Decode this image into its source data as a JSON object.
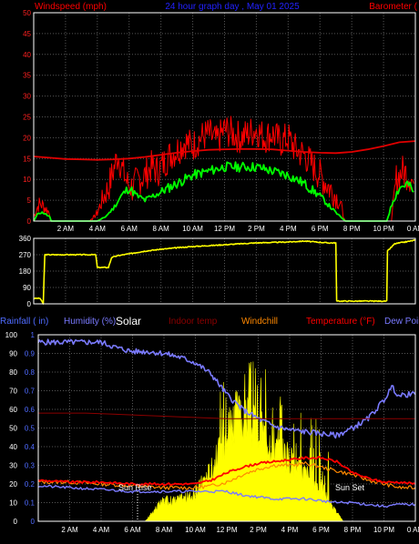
{
  "colors": {
    "background": "#000000",
    "frame": "#ffffff",
    "grid": "#555555",
    "wind_title": "#ff0000",
    "baro_title": "#ff0000",
    "chart_title": "#2222ff",
    "wind_tick": "#ff2020",
    "dir_tick": "#ffffff",
    "time_tick": "#ffffff",
    "rain_tick": "#4f6bff",
    "hum_tick": "#ffffff",
    "speed": "#ff0000",
    "average": "#00ff00",
    "barometer": "#e00000",
    "direction": "#ffff00",
    "solar": "#ffff00",
    "humidity": "#7a7aff",
    "indoor": "#8b0000",
    "temperature": "#ff0000",
    "windchill": "#ff8800",
    "dewpoint": "#7a7aff",
    "sun_text": "#ffffff"
  },
  "chart_data": [
    {
      "type": "line",
      "title": "24 hour graph day , May 01 2025",
      "ylabel": "Windspeed (mph)",
      "y2label": "Barometer (",
      "ylim": [
        0,
        50
      ],
      "yticks": [
        0,
        5,
        10,
        15,
        20,
        25,
        30,
        35,
        40,
        45,
        50
      ],
      "x_ticks": [
        "2 AM",
        "4 AM",
        "6 AM",
        "8 AM",
        "10 AM",
        "12 PM",
        "2 PM",
        "4 PM",
        "6 PM",
        "8 PM",
        "10 PM",
        "0 AM"
      ],
      "grid": true,
      "series": [
        {
          "key": "speed",
          "x": [
            0,
            0.3,
            0.5,
            1.0,
            1.05,
            1.5,
            2.5,
            3.5,
            3.8,
            4.0,
            4.3,
            4.7,
            5.0,
            5.3,
            5.6,
            5.9,
            6.2,
            6.6,
            7.0,
            7.4,
            7.8,
            8.2,
            8.6,
            9.0,
            9.5,
            10.0,
            10.5,
            11.0,
            11.5,
            12.0,
            12.5,
            13.0,
            13.5,
            14.0,
            14.5,
            15.0,
            15.5,
            16.0,
            16.5,
            17.0,
            17.4,
            17.8,
            18.2,
            18.6,
            19.0,
            19.3,
            19.5,
            19.6,
            21.0,
            22.0,
            22.5,
            22.8,
            23.2,
            23.6,
            23.9
          ],
          "y": [
            1,
            4,
            4,
            2,
            0,
            0,
            0,
            0,
            1,
            2,
            5,
            8,
            12,
            16,
            12,
            9,
            8,
            10,
            11,
            13,
            12,
            14,
            16,
            17,
            19,
            18,
            20,
            21,
            19,
            22,
            21,
            20,
            21,
            22,
            20,
            21,
            19,
            20,
            17,
            16,
            14,
            12,
            10,
            8,
            6,
            4,
            1,
            0,
            0,
            0,
            0,
            10,
            12,
            11,
            9
          ]
        },
        {
          "key": "average",
          "x": [
            0,
            0.3,
            0.6,
            1.0,
            1.1,
            2.5,
            3.5,
            4.0,
            4.5,
            5.0,
            5.5,
            6.0,
            6.5,
            7.0,
            7.5,
            8.0,
            9.0,
            10.0,
            11.0,
            12.0,
            13.0,
            14.0,
            15.0,
            16.0,
            17.0,
            18.0,
            18.5,
            19.0,
            19.3,
            19.6,
            21.0,
            22.2,
            22.6,
            23.0,
            23.5,
            23.9
          ],
          "y": [
            0,
            2,
            2,
            1,
            0,
            0,
            0,
            0,
            1,
            3,
            6,
            8,
            6,
            5,
            6,
            7,
            9,
            11,
            12,
            13,
            13,
            13,
            12,
            11,
            9,
            6,
            4,
            2,
            1,
            0,
            0,
            0,
            5,
            8,
            9,
            7
          ]
        },
        {
          "key": "barometer",
          "x": [
            0,
            1,
            2,
            3,
            4,
            5,
            6,
            7,
            8,
            9,
            10,
            11,
            12,
            13,
            14,
            15,
            16,
            17,
            18,
            19,
            20,
            21,
            22,
            23,
            24
          ],
          "y": [
            15.5,
            15.2,
            14.9,
            14.8,
            14.7,
            14.8,
            15.0,
            15.4,
            15.9,
            16.4,
            16.8,
            17.1,
            17.2,
            17.3,
            17.3,
            17.2,
            16.9,
            16.6,
            16.4,
            16.3,
            16.6,
            17.2,
            18.0,
            18.9,
            19.2
          ]
        }
      ]
    },
    {
      "type": "line",
      "title": "",
      "ylim": [
        0,
        360
      ],
      "yticks": [
        0,
        90,
        180,
        270,
        360
      ],
      "grid": true,
      "series": [
        {
          "key": "direction",
          "x": [
            0,
            0.4,
            0.6,
            0.7,
            2.5,
            3.9,
            4.0,
            4.1,
            4.7,
            4.9,
            5.3,
            6.0,
            7.0,
            8.0,
            9.0,
            10.0,
            12.0,
            14.0,
            16.0,
            17.0,
            18.5,
            19.0,
            19.05,
            22.2,
            22.25,
            22.7,
            24.0
          ],
          "y": [
            30,
            30,
            0,
            270,
            270,
            270,
            200,
            200,
            200,
            255,
            265,
            275,
            290,
            300,
            308,
            315,
            325,
            335,
            340,
            345,
            335,
            335,
            15,
            15,
            290,
            330,
            350
          ]
        }
      ]
    },
    {
      "type": "line",
      "title": "",
      "legend": [
        "Rainfall ( in)",
        "Humidity (%)",
        "Solar",
        "Indoor temp",
        "Windchill",
        "Temperature (°F)",
        "Dew Point"
      ],
      "left_ticks": [
        "0",
        "0.1",
        "0.2",
        "0.3",
        "0.4",
        "0.5",
        "0.6",
        "0.7",
        "0.8",
        "0.9",
        "1"
      ],
      "ylim": [
        0,
        100
      ],
      "yticks": [
        0,
        10,
        20,
        30,
        40,
        50,
        60,
        70,
        80,
        90,
        100
      ],
      "x_ticks": [
        "2 AM",
        "4 AM",
        "6 AM",
        "8 AM",
        "10 AM",
        "12 PM",
        "2 PM",
        "4 PM",
        "6 PM",
        "8 PM",
        "10 PM",
        "0 AM"
      ],
      "annotations": [
        "Sun Rise",
        "Sun Set"
      ],
      "grid": true,
      "series": [
        {
          "key": "solar",
          "x": [
            0,
            6.8,
            7.0,
            7.5,
            8.0,
            8.5,
            9.0,
            9.5,
            10.0,
            10.5,
            11.0,
            11.5,
            12.0,
            12.5,
            13.0,
            13.5,
            14.0,
            14.5,
            15.0,
            15.5,
            16.0,
            16.5,
            17.0,
            17.5,
            18.0,
            18.5,
            19.0,
            19.4,
            24.0
          ],
          "y": [
            0,
            0,
            2,
            8,
            12,
            12,
            13,
            14,
            16,
            24,
            30,
            40,
            55,
            62,
            60,
            58,
            55,
            50,
            45,
            42,
            36,
            32,
            28,
            25,
            20,
            12,
            5,
            0,
            0
          ]
        },
        {
          "key": "humidity",
          "x": [
            0,
            1,
            2,
            3,
            4,
            5,
            6,
            7,
            8,
            9,
            10,
            11,
            12,
            13,
            14,
            15,
            16,
            17,
            18,
            19,
            20,
            21,
            21.5,
            22,
            22.5,
            23,
            23.5,
            24
          ],
          "y": [
            96,
            96,
            96,
            96,
            96,
            93,
            91,
            91,
            90,
            88,
            85,
            79,
            68,
            60,
            55,
            51,
            49,
            48,
            47,
            46,
            50,
            55,
            60,
            65,
            72,
            67,
            68,
            68
          ]
        },
        {
          "key": "indoor",
          "x": [
            0,
            3,
            6,
            9,
            12,
            15,
            18,
            21,
            24
          ],
          "y": [
            58,
            58,
            57,
            56,
            55,
            55,
            55,
            55,
            55
          ]
        },
        {
          "key": "windchill",
          "x": [
            0,
            2,
            4,
            6,
            8,
            10,
            11,
            12,
            13,
            14,
            15,
            16,
            17,
            18,
            19,
            20,
            21,
            22,
            23,
            24
          ],
          "y": [
            21,
            21,
            20,
            19,
            18,
            18,
            19,
            21,
            25,
            28,
            30,
            30,
            31,
            29,
            27,
            25,
            22,
            20,
            18,
            18
          ]
        },
        {
          "key": "temperature",
          "x": [
            0,
            2,
            4,
            6,
            8,
            10,
            11,
            12,
            13,
            14,
            15,
            16,
            17,
            18,
            19,
            20,
            21,
            22,
            23,
            24
          ],
          "y": [
            22,
            21,
            21,
            20,
            20,
            20,
            22,
            26,
            29,
            31,
            32,
            33,
            34,
            34,
            32,
            26,
            23,
            21,
            21,
            20
          ]
        },
        {
          "key": "dewpoint",
          "x": [
            0,
            2,
            4,
            6,
            8,
            10,
            11,
            12,
            13,
            14,
            15,
            16,
            17,
            18,
            19,
            20,
            21,
            22,
            23,
            24
          ],
          "y": [
            19,
            18,
            17,
            16,
            16,
            16,
            16,
            16,
            14,
            13,
            12,
            12,
            12,
            11,
            10,
            10,
            9,
            8,
            9,
            9
          ]
        }
      ]
    }
  ]
}
